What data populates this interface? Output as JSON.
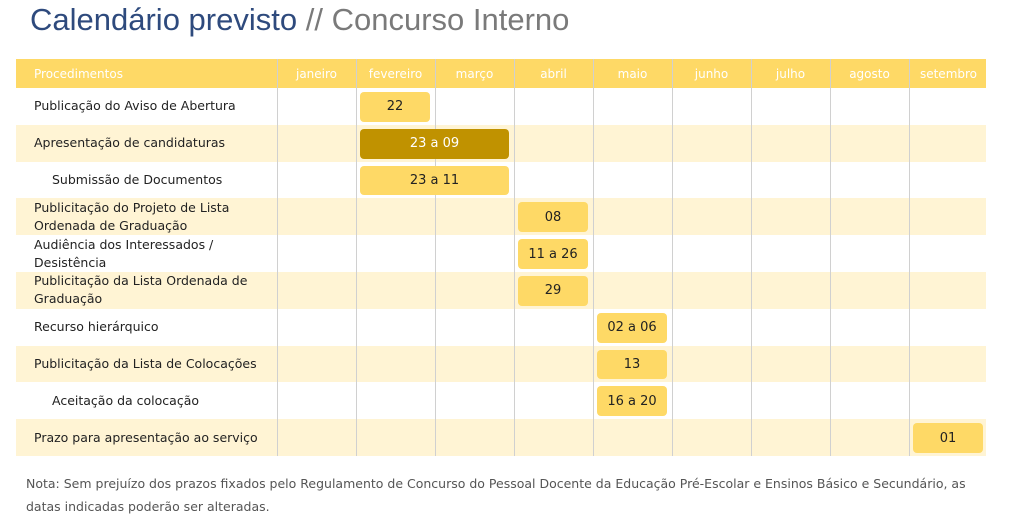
{
  "title": {
    "main": "Calendário previsto",
    "separator": "//",
    "sub": "Concurso Interno"
  },
  "table": {
    "header": [
      "Procedimentos",
      "janeiro",
      "fevereiro",
      "março",
      "abril",
      "maio",
      "junho",
      "julho",
      "agosto",
      "setembro"
    ],
    "rows": [
      {
        "label": "Publicação do Aviso de Abertura",
        "indent": false,
        "start": 1,
        "span": 1,
        "text": "22",
        "highlight": false
      },
      {
        "label": "Apresentação de candidaturas",
        "indent": false,
        "start": 1,
        "span": 2,
        "text": "23 a 09",
        "highlight": true
      },
      {
        "label": "Submissão de Documentos",
        "indent": true,
        "start": 1,
        "span": 2,
        "text": "23 a 11",
        "highlight": false
      },
      {
        "label": "Publicitação do Projeto de Lista Ordenada de Graduação",
        "indent": false,
        "start": 3,
        "span": 1,
        "text": "08",
        "highlight": false
      },
      {
        "label": "Audiência dos Interessados / Desistência",
        "indent": false,
        "start": 3,
        "span": 1,
        "text": "11 a 26",
        "highlight": false
      },
      {
        "label": "Publicitação da Lista Ordenada de Graduação",
        "indent": false,
        "start": 3,
        "span": 1,
        "text": "29",
        "highlight": false
      },
      {
        "label": "Recurso hierárquico",
        "indent": false,
        "start": 4,
        "span": 1,
        "text": "02 a 06",
        "highlight": false
      },
      {
        "label": "Publicitação da Lista de Colocações",
        "indent": false,
        "start": 4,
        "span": 1,
        "text": "13",
        "highlight": false
      },
      {
        "label": "Aceitação da colocação",
        "indent": true,
        "start": 4,
        "span": 1,
        "text": "16 a 20",
        "highlight": false
      },
      {
        "label": "Prazo para apresentação ao serviço",
        "indent": false,
        "start": 8,
        "span": 1,
        "text": "01",
        "highlight": false
      }
    ]
  },
  "note": "Nota: Sem prejuízo dos prazos fixados pelo Regulamento de Concurso do Pessoal Docente da Educação Pré-Escolar e Ensinos Básico e Secundário, as datas indicadas poderão ser alteradas."
}
